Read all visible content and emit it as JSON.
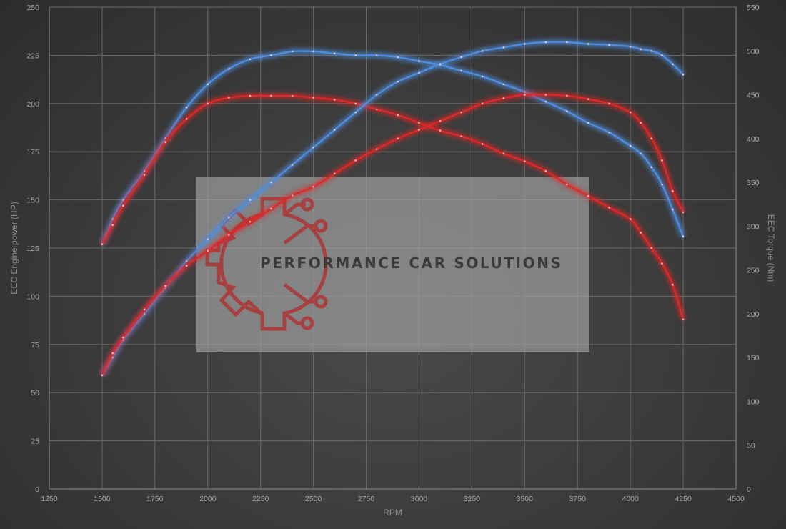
{
  "colors": {
    "stock": "#4f8fe0",
    "tuned": "#e02828",
    "grid": "#6a6a6a",
    "watermark_bg": "#a2a2a2",
    "logo": "#b03030"
  },
  "watermark": {
    "brand": "PERFORMANCE CAR SOLUTIONS",
    "logo_icon": "gear-circuit-logo-icon"
  },
  "chart_data": {
    "type": "line",
    "xlabel": "RPM",
    "ylabel_left": "EEC Engine power (HP)",
    "ylabel_right": "EEC Torque (Nm)",
    "xlim": [
      1250,
      4500
    ],
    "ylim_left": [
      0,
      250
    ],
    "ylim_right": [
      0,
      550
    ],
    "x_ticks": [
      1250,
      1500,
      1750,
      2000,
      2250,
      2500,
      2750,
      3000,
      3250,
      3500,
      3750,
      4000,
      4250,
      4500
    ],
    "y_ticks_left": [
      0,
      25,
      50,
      75,
      100,
      125,
      150,
      175,
      200,
      225,
      250
    ],
    "y_ticks_right": [
      0,
      50,
      100,
      150,
      200,
      250,
      300,
      350,
      400,
      450,
      500,
      550
    ],
    "grid": true,
    "legend": "none",
    "series": [
      {
        "axis": "left",
        "color": "#4f8fe0",
        "x": [
          1500,
          1550,
          1600,
          1700,
          1800,
          1900,
          2000,
          2100,
          2200,
          2300,
          2400,
          2500,
          2600,
          2700,
          2800,
          2900,
          3000,
          3100,
          3200,
          3300,
          3400,
          3500,
          3600,
          3700,
          3800,
          3900,
          4000,
          4050,
          4100,
          4150,
          4200,
          4250
        ],
        "y": [
          127,
          140,
          150,
          165,
          182,
          198,
          210,
          218,
          223,
          225,
          227,
          227,
          226,
          225,
          225,
          224,
          222,
          220,
          217,
          214,
          210,
          206,
          201,
          196,
          190,
          185,
          178,
          174,
          167,
          158,
          145,
          131
        ]
      },
      {
        "axis": "left",
        "color": "#e02828",
        "x": [
          1500,
          1550,
          1600,
          1700,
          1800,
          1900,
          2000,
          2100,
          2200,
          2300,
          2400,
          2500,
          2600,
          2700,
          2800,
          2900,
          3000,
          3100,
          3200,
          3300,
          3400,
          3500,
          3600,
          3700,
          3800,
          3900,
          4000,
          4050,
          4100,
          4150,
          4200,
          4250
        ],
        "y": [
          127,
          137,
          147,
          163,
          180,
          192,
          200,
          203,
          204,
          204,
          204,
          203,
          202,
          200,
          197,
          194,
          190,
          186,
          183,
          179,
          174,
          170,
          165,
          158,
          152,
          146,
          140,
          133,
          125,
          117,
          106,
          88
        ]
      },
      {
        "axis": "right",
        "color": "#4f8fe0",
        "x": [
          1500,
          1550,
          1600,
          1700,
          1800,
          1900,
          2000,
          2100,
          2200,
          2300,
          2400,
          2500,
          2600,
          2700,
          2800,
          2900,
          3000,
          3100,
          3200,
          3300,
          3400,
          3500,
          3600,
          3700,
          3800,
          3900,
          4000,
          4050,
          4100,
          4150,
          4200,
          4250
        ],
        "y": [
          130,
          150,
          170,
          200,
          230,
          260,
          285,
          310,
          330,
          350,
          370,
          390,
          410,
          430,
          450,
          465,
          475,
          485,
          493,
          500,
          504,
          508,
          510,
          510,
          508,
          507,
          505,
          502,
          500,
          495,
          485,
          473
        ]
      },
      {
        "axis": "right",
        "color": "#e02828",
        "x": [
          1500,
          1550,
          1600,
          1700,
          1800,
          1900,
          2000,
          2100,
          2200,
          2300,
          2400,
          2500,
          2600,
          2700,
          2800,
          2900,
          3000,
          3100,
          3200,
          3300,
          3400,
          3500,
          3600,
          3700,
          3800,
          3900,
          4000,
          4050,
          4100,
          4150,
          4200,
          4250
        ],
        "y": [
          130,
          155,
          173,
          205,
          232,
          255,
          272,
          290,
          305,
          320,
          335,
          345,
          360,
          375,
          388,
          400,
          410,
          420,
          430,
          440,
          446,
          450,
          450,
          449,
          445,
          440,
          430,
          418,
          400,
          375,
          340,
          316
        ]
      }
    ]
  }
}
